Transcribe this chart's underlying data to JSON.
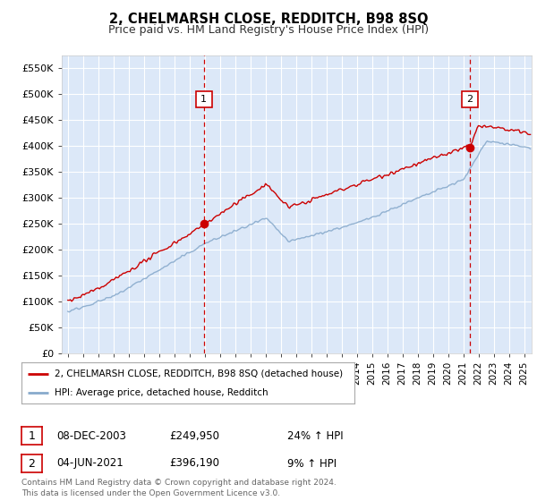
{
  "title": "2, CHELMARSH CLOSE, REDDITCH, B98 8SQ",
  "subtitle": "Price paid vs. HM Land Registry's House Price Index (HPI)",
  "fig_bg_color": "#ffffff",
  "plot_bg_color": "#dce8f8",
  "grid_color": "#ffffff",
  "red_line_color": "#cc0000",
  "blue_line_color": "#88aacc",
  "ylim": [
    0,
    575000
  ],
  "yticks": [
    0,
    50000,
    100000,
    150000,
    200000,
    250000,
    300000,
    350000,
    400000,
    450000,
    500000,
    550000
  ],
  "ytick_labels": [
    "£0",
    "£50K",
    "£100K",
    "£150K",
    "£200K",
    "£250K",
    "£300K",
    "£350K",
    "£400K",
    "£450K",
    "£500K",
    "£550K"
  ],
  "marker1_year": 2003.93,
  "marker1_price": 249950,
  "marker2_year": 2021.42,
  "marker2_price": 396190,
  "legend_red": "2, CHELMARSH CLOSE, REDDITCH, B98 8SQ (detached house)",
  "legend_blue": "HPI: Average price, detached house, Redditch",
  "annotation1_date": "08-DEC-2003",
  "annotation1_price": "£249,950",
  "annotation1_hpi": "24% ↑ HPI",
  "annotation2_date": "04-JUN-2021",
  "annotation2_price": "£396,190",
  "annotation2_hpi": "9% ↑ HPI",
  "footer": "Contains HM Land Registry data © Crown copyright and database right 2024.\nThis data is licensed under the Open Government Licence v3.0."
}
